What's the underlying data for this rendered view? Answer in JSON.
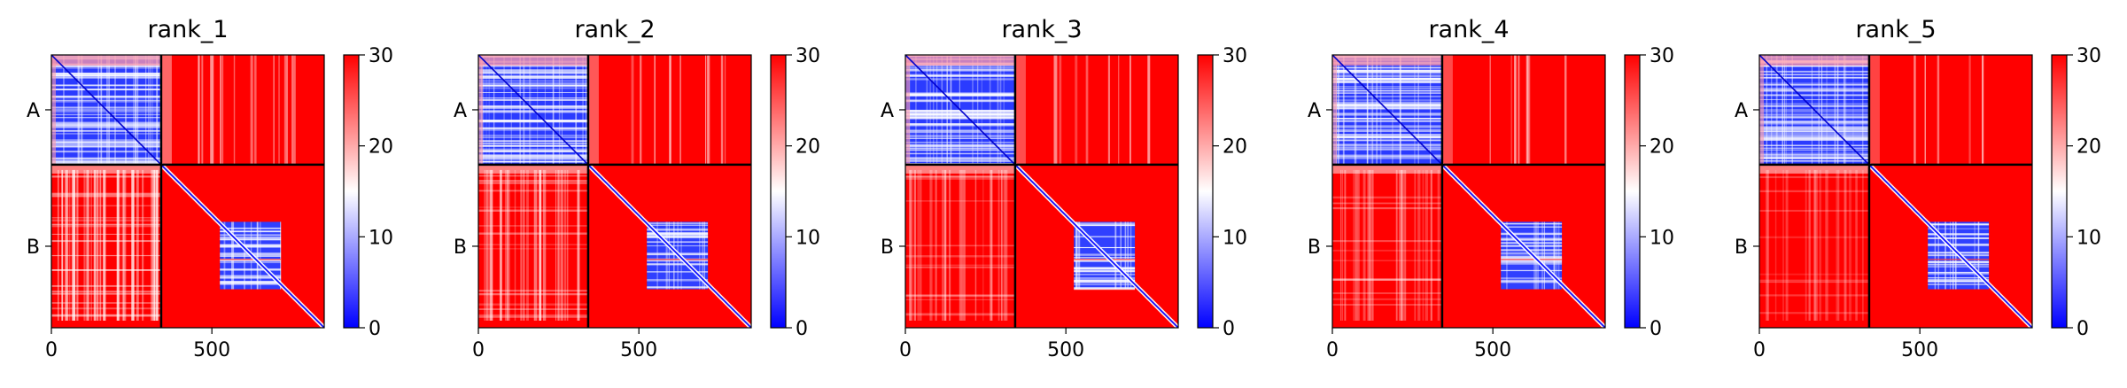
{
  "figure": {
    "layout": "1x5 panels",
    "colormap": "bwr",
    "colormap_colors": [
      "#0000ff",
      "#ffffff",
      "#ff0000"
    ]
  },
  "chart_data": [
    {
      "type": "heatmap",
      "title": "rank_1",
      "x_ticks": [
        "0",
        "500"
      ],
      "chain_labels": [
        "A",
        "B"
      ],
      "chain_boundary": 342,
      "matrix_size": 850,
      "colorbar": {
        "range": [
          0,
          30
        ],
        "ticks": [
          "0",
          "10",
          "20",
          "30"
        ]
      },
      "offdiag_stripe_density": 0.65
    },
    {
      "type": "heatmap",
      "title": "rank_2",
      "x_ticks": [
        "0",
        "500"
      ],
      "chain_labels": [
        "A",
        "B"
      ],
      "chain_boundary": 342,
      "matrix_size": 850,
      "colorbar": {
        "range": [
          0,
          30
        ],
        "ticks": [
          "0",
          "10",
          "20",
          "30"
        ]
      },
      "offdiag_stripe_density": 0.45
    },
    {
      "type": "heatmap",
      "title": "rank_3",
      "x_ticks": [
        "0",
        "500"
      ],
      "chain_labels": [
        "A",
        "B"
      ],
      "chain_boundary": 342,
      "matrix_size": 850,
      "colorbar": {
        "range": [
          0,
          30
        ],
        "ticks": [
          "0",
          "10",
          "20",
          "30"
        ]
      },
      "offdiag_stripe_density": 0.35
    },
    {
      "type": "heatmap",
      "title": "rank_4",
      "x_ticks": [
        "0",
        "500"
      ],
      "chain_labels": [
        "A",
        "B"
      ],
      "chain_boundary": 342,
      "matrix_size": 850,
      "colorbar": {
        "range": [
          0,
          30
        ],
        "ticks": [
          "0",
          "10",
          "20",
          "30"
        ]
      },
      "offdiag_stripe_density": 0.3
    },
    {
      "type": "heatmap",
      "title": "rank_5",
      "x_ticks": [
        "0",
        "500"
      ],
      "chain_labels": [
        "A",
        "B"
      ],
      "chain_boundary": 342,
      "matrix_size": 850,
      "colorbar": {
        "range": [
          0,
          30
        ],
        "ticks": [
          "0",
          "10",
          "20",
          "30"
        ]
      },
      "offdiag_stripe_density": 0.2
    }
  ]
}
